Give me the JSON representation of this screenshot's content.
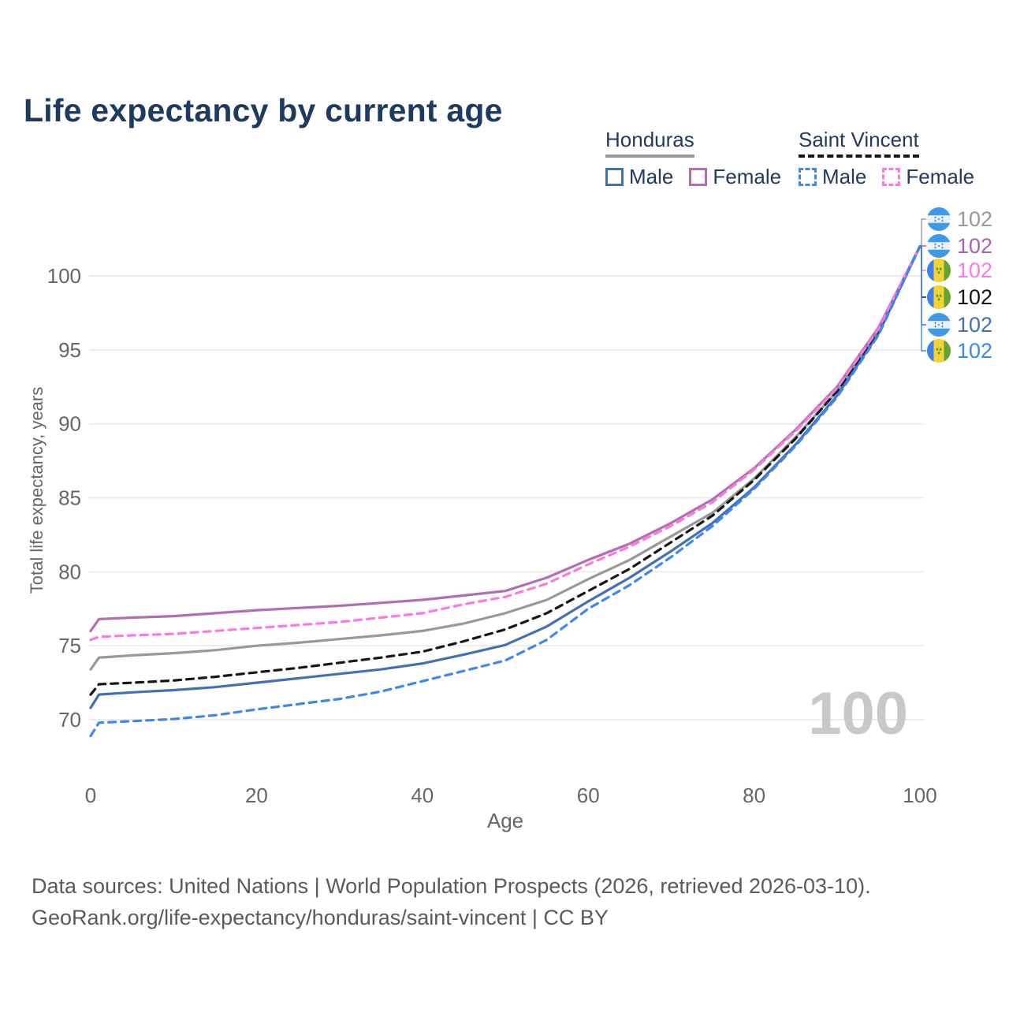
{
  "title": "Life expectancy by current age",
  "legend": {
    "groups": [
      {
        "id": "honduras",
        "label": "Honduras",
        "line_style": "solid",
        "line_color": "#999999",
        "items": [
          {
            "label": "Male",
            "color": "#436fb5",
            "dash": false
          },
          {
            "label": "Female",
            "color": "#b06fb0",
            "dash": false
          }
        ]
      },
      {
        "id": "saintvincent",
        "label": "Saint Vincent",
        "line_style": "dashed",
        "line_color": "#161616",
        "items": [
          {
            "label": "Male",
            "color": "#3e86f2",
            "dash": true
          },
          {
            "label": "Female",
            "color": "#fb7ae1",
            "dash": true
          }
        ]
      }
    ]
  },
  "chart_data": {
    "type": "line",
    "title": "Life expectancy by current age",
    "xlabel": "Age",
    "ylabel": "Total life expectancy, years",
    "xlim": [
      0,
      100
    ],
    "ylim": [
      68,
      103
    ],
    "xticks": [
      0,
      20,
      40,
      60,
      80,
      100
    ],
    "yticks": [
      70,
      75,
      80,
      85,
      90,
      95,
      100
    ],
    "grid": "horizontal",
    "legend_position": "top-right",
    "age_indicator": "100",
    "x": [
      0,
      1,
      5,
      10,
      15,
      20,
      25,
      30,
      35,
      40,
      45,
      50,
      55,
      60,
      65,
      70,
      75,
      80,
      85,
      90,
      95,
      100
    ],
    "series": [
      {
        "id": "hn_total",
        "name": "Honduras Total",
        "country": "Honduras",
        "color": "#999999",
        "dash": false,
        "values": [
          73.4,
          74.2,
          74.35,
          74.5,
          74.7,
          75.0,
          75.2,
          75.45,
          75.7,
          76.0,
          76.5,
          77.2,
          78.1,
          79.5,
          80.8,
          82.4,
          84.0,
          86.3,
          89.1,
          92.2,
          96.3,
          102
        ]
      },
      {
        "id": "hn_female",
        "name": "Honduras Female",
        "country": "Honduras",
        "color": "#b06fb0",
        "dash": false,
        "values": [
          76.0,
          76.8,
          76.9,
          77.0,
          77.2,
          77.4,
          77.55,
          77.7,
          77.9,
          78.1,
          78.4,
          78.7,
          79.6,
          80.8,
          81.9,
          83.3,
          84.9,
          87.0,
          89.6,
          92.5,
          96.5,
          102
        ]
      },
      {
        "id": "hn_male",
        "name": "Honduras Male",
        "country": "Honduras",
        "color": "#436fb5",
        "dash": false,
        "values": [
          70.8,
          71.7,
          71.85,
          72.0,
          72.2,
          72.5,
          72.8,
          73.1,
          73.4,
          73.8,
          74.4,
          75.05,
          76.3,
          78.0,
          79.6,
          81.4,
          83.3,
          85.7,
          88.6,
          91.9,
          96.1,
          102
        ]
      },
      {
        "id": "vc_total",
        "name": "Saint Vincent Total",
        "country": "Saint Vincent",
        "color": "#161616",
        "dash": true,
        "values": [
          71.7,
          72.4,
          72.5,
          72.65,
          72.9,
          73.2,
          73.5,
          73.85,
          74.2,
          74.6,
          75.3,
          76.1,
          77.2,
          78.7,
          80.2,
          82.0,
          83.8,
          86.2,
          89.0,
          92.2,
          96.3,
          102
        ]
      },
      {
        "id": "vc_female",
        "name": "Saint Vincent Female",
        "country": "Saint Vincent",
        "color": "#fb7ae1",
        "dash": true,
        "values": [
          75.4,
          75.6,
          75.7,
          75.8,
          76.0,
          76.2,
          76.4,
          76.6,
          76.9,
          77.2,
          77.8,
          78.3,
          79.2,
          80.5,
          81.7,
          83.1,
          84.7,
          86.9,
          89.5,
          92.4,
          96.4,
          102
        ]
      },
      {
        "id": "vc_male",
        "name": "Saint Vincent Male",
        "country": "Saint Vincent",
        "color": "#3e86f2",
        "dash": true,
        "values": [
          68.9,
          69.8,
          69.9,
          70.05,
          70.3,
          70.7,
          71.05,
          71.4,
          71.9,
          72.6,
          73.3,
          74.0,
          75.4,
          77.5,
          79.1,
          81.0,
          83.1,
          85.6,
          88.5,
          91.8,
          96.0,
          102
        ]
      }
    ],
    "end_labels": [
      {
        "series": "hn_total",
        "flag": "honduras",
        "value": "102",
        "color": "#999999"
      },
      {
        "series": "hn_female",
        "flag": "honduras",
        "value": "102",
        "color": "#a964a9"
      },
      {
        "series": "vc_female",
        "flag": "saint-vincent",
        "value": "102",
        "color": "#fb7ae1"
      },
      {
        "series": "vc_total",
        "flag": "saint-vincent",
        "value": "102",
        "color": "#161616"
      },
      {
        "series": "hn_male",
        "flag": "honduras",
        "value": "102",
        "color": "#436fb5"
      },
      {
        "series": "vc_male",
        "flag": "saint-vincent",
        "value": "102",
        "color": "#3e86f2"
      }
    ]
  },
  "footer": {
    "line1": "Data sources: United Nations | World Population Prospects (2026, retrieved 2026-03-10).",
    "line2": "GeoRank.org/life-expectancy/honduras/saint-vincent | CC BY"
  }
}
